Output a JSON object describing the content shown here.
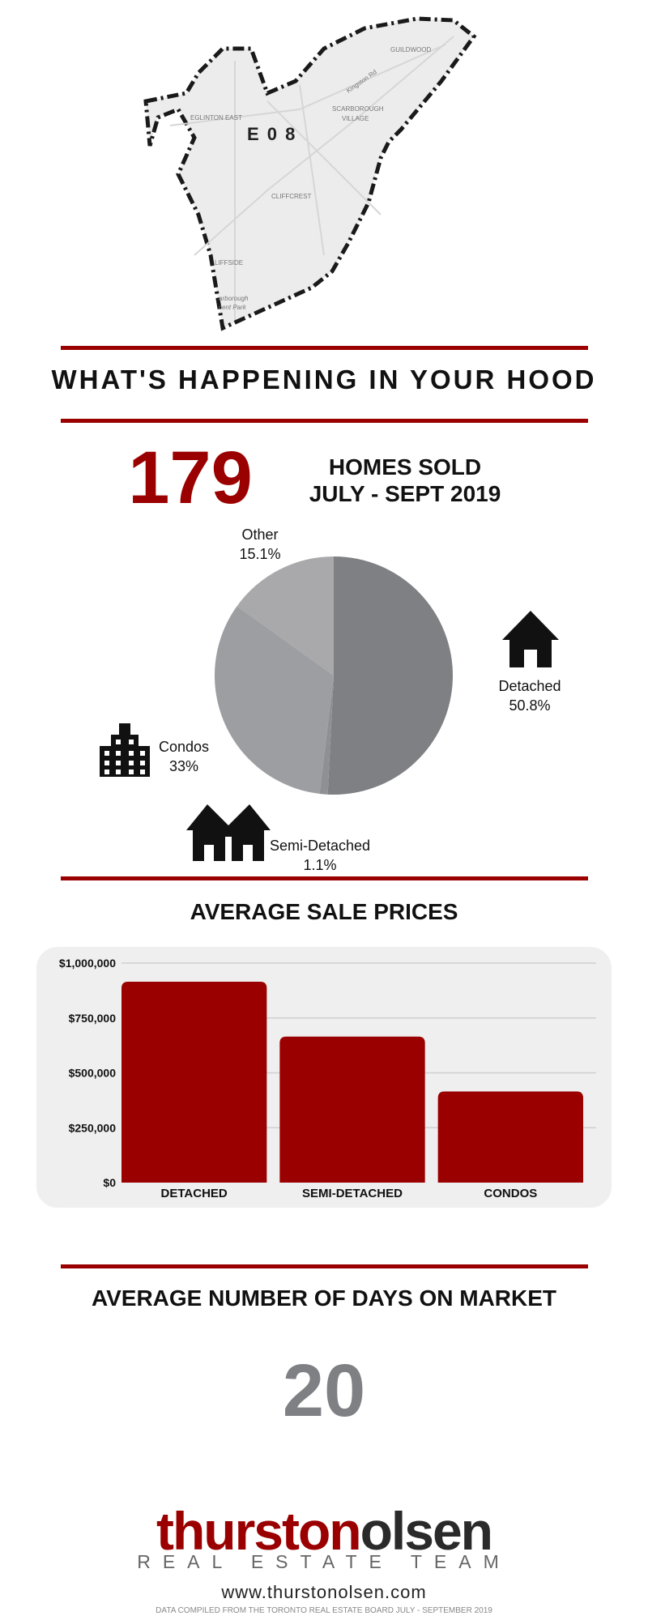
{
  "map": {
    "district_code": "E 0 8",
    "labels": [
      "GUILDWOOD",
      "EGLINTON EAST",
      "SCARBOROUGH",
      "VILLAGE",
      "CLIFFCREST",
      "LIFFSIDE",
      "arborough",
      "cent Park",
      "Kingston Rd"
    ]
  },
  "hood_title": "WHAT'S HAPPENING IN YOUR HOOD",
  "homes": {
    "count": "179",
    "label_line1": "HOMES SOLD",
    "label_line2": "JULY - SEPT 2019"
  },
  "pie": {
    "other_name": "Other",
    "other_pct": "15.1%",
    "detached_name": "Detached",
    "detached_pct": "50.8%",
    "condos_name": "Condos",
    "condos_pct": "33%",
    "semi_name": "Semi-Detached",
    "semi_pct": "1.1%"
  },
  "avg_price_title": "AVERAGE SALE PRICES",
  "days_title": "AVERAGE NUMBER OF DAYS ON MARKET",
  "days_value": "20",
  "logo": {
    "part1": "thurston",
    "part2": "olsen",
    "sub": "REAL ESTATE TEAM"
  },
  "website": "www.thurstonolsen.com",
  "footnote": "DATA COMPILED FROM THE TORONTO REAL ESTATE BOARD JULY - SEPTEMBER 2019",
  "colors": {
    "accent": "#9b0000",
    "gray_dark": "#7e8083",
    "gray_mid": "#9d9ea2",
    "gray_light": "#a9a8ab",
    "icon": "#111111"
  },
  "icons": [
    "house-icon",
    "duplex-icon",
    "condo-building-icon"
  ],
  "chart_data": [
    {
      "type": "pie",
      "categories": [
        "Detached",
        "Semi-Detached",
        "Condos",
        "Other"
      ],
      "values": [
        50.8,
        1.1,
        33,
        15.1
      ],
      "colors": [
        "#7e8083",
        "#8f9093",
        "#9d9ea2",
        "#a9a8ab"
      ]
    },
    {
      "type": "bar",
      "categories": [
        "DETACHED",
        "SEMI-DETACHED",
        "CONDOS"
      ],
      "values": [
        915000,
        665000,
        415000
      ],
      "title": "AVERAGE SALE PRICES",
      "ylim": [
        0,
        1000000
      ],
      "yticks": [
        0,
        250000,
        500000,
        750000,
        1000000
      ],
      "ytick_labels": [
        "$0",
        "$250,000",
        "$500,000",
        "$750,000",
        "$1,000,000"
      ],
      "grid": true,
      "bar_color": "#9b0000"
    }
  ]
}
